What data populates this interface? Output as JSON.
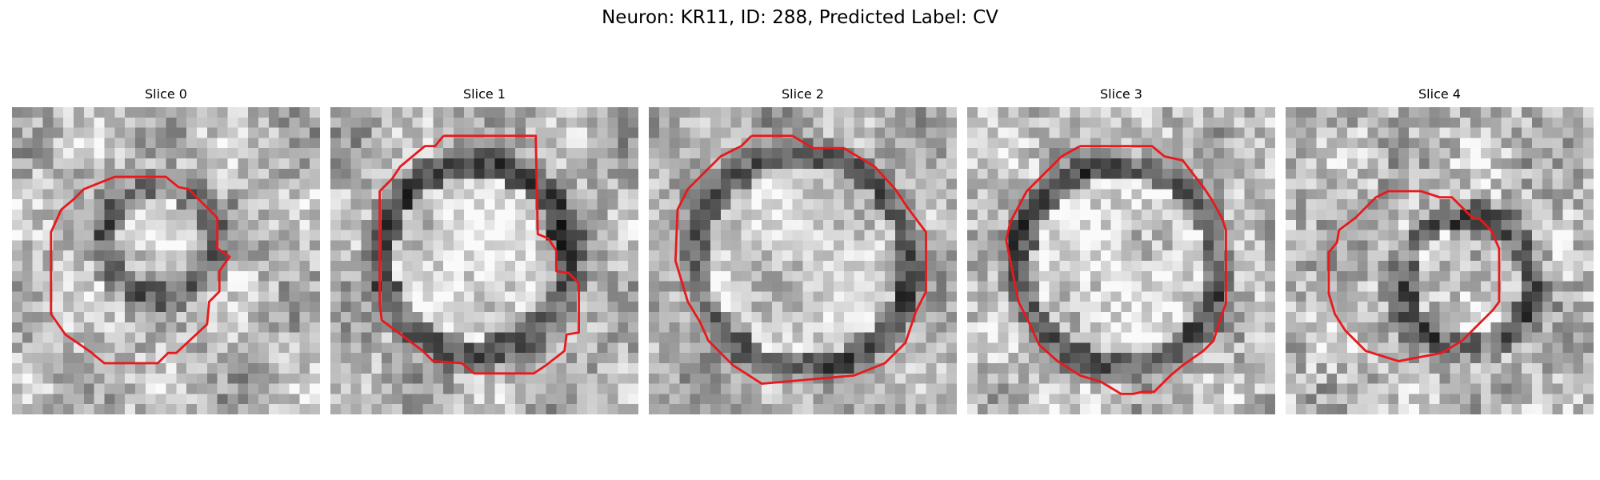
{
  "figure": {
    "title": "Neuron: KR11, ID: 288, Predicted Label: CV"
  },
  "panels": [
    {
      "title": "Slice 0",
      "variant": "small-ring"
    },
    {
      "title": "Slice 1",
      "variant": "notched-ring"
    },
    {
      "title": "Slice 2",
      "variant": "large-ring"
    },
    {
      "title": "Slice 3",
      "variant": "large-ring-bright"
    },
    {
      "title": "Slice 4",
      "variant": "small-ring-low"
    }
  ],
  "style": {
    "outline_color": "#e8191c",
    "colormap": "grayscale"
  }
}
